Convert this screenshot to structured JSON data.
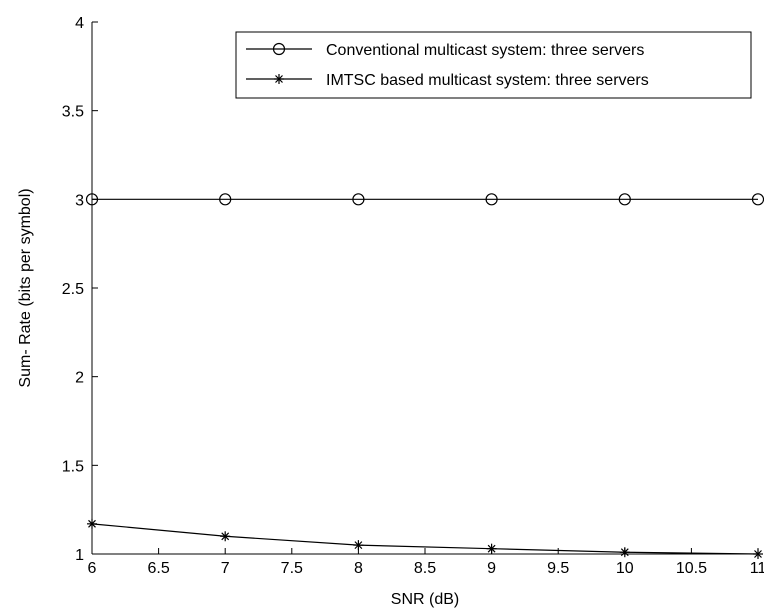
{
  "chart_data": {
    "type": "line",
    "title": "",
    "xlabel": "SNR (dB)",
    "ylabel": "Sum- Rate (bits per symbol)",
    "xlim": [
      6,
      11
    ],
    "ylim": [
      1,
      4
    ],
    "x_ticks": [
      6,
      6.5,
      7,
      7.5,
      8,
      8.5,
      9,
      9.5,
      10,
      10.5,
      11
    ],
    "x_tick_labels": [
      "6",
      "6.5",
      "7",
      "7.5",
      "8",
      "8.5",
      "9",
      "9.5",
      "10",
      "10.5",
      "11"
    ],
    "y_ticks": [
      1,
      1.5,
      2,
      2.5,
      3,
      3.5,
      4
    ],
    "y_tick_labels": [
      "1",
      "1.5",
      "2",
      "2.5",
      "3",
      "3.5",
      "4"
    ],
    "grid": false,
    "legend_position": "top-right",
    "series": [
      {
        "name": "Conventional multicast system: three servers",
        "marker": "circle",
        "color": "#000000",
        "x": [
          6,
          7,
          8,
          9,
          10,
          11
        ],
        "values": [
          3,
          3,
          3,
          3,
          3,
          3
        ]
      },
      {
        "name": "IMTSC based multicast system: three servers",
        "marker": "asterisk",
        "color": "#000000",
        "x": [
          6,
          7,
          8,
          9,
          10,
          11
        ],
        "values": [
          1.17,
          1.1,
          1.05,
          1.03,
          1.01,
          1.0
        ]
      }
    ]
  }
}
